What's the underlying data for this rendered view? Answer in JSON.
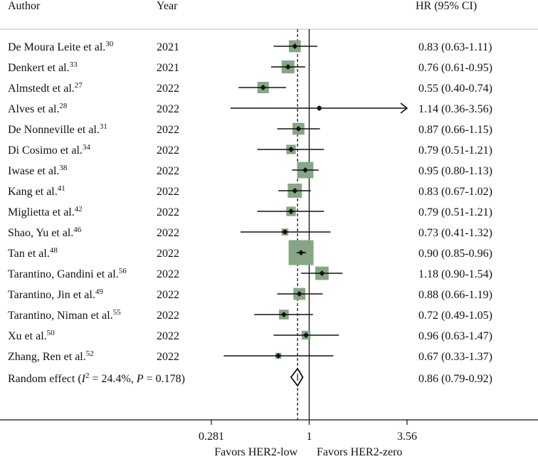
{
  "chart_data": {
    "type": "forest",
    "headers": {
      "author": "Author",
      "year": "Year",
      "hr": "HR (95% CI)"
    },
    "x_scale": "log",
    "x_ticks": [
      {
        "value": 0.281,
        "label": "0.281"
      },
      {
        "value": 1,
        "label": "1"
      },
      {
        "value": 3.56,
        "label": "3.56"
      }
    ],
    "x_range": [
      0.281,
      3.56
    ],
    "favor_left": "Favors HER2-low",
    "favor_right": "Favors HER2-zero",
    "reference_line": 1,
    "pooled_line": 0.86,
    "studies": [
      {
        "author": "De Moura Leite et al.",
        "ref": "30",
        "year": "2021",
        "hr": 0.83,
        "lo": 0.63,
        "hi": 1.11,
        "weight": 2.4,
        "ci_text": "0.83 (0.63-1.11)"
      },
      {
        "author": "Denkert et al.",
        "ref": "33",
        "year": "2021",
        "hr": 0.76,
        "lo": 0.61,
        "hi": 0.95,
        "weight": 2.8,
        "ci_text": "0.76 (0.61-0.95)"
      },
      {
        "author": "Almstedt et al.",
        "ref": "27",
        "year": "2022",
        "hr": 0.55,
        "lo": 0.4,
        "hi": 0.74,
        "weight": 2.2,
        "ci_text": "0.55 (0.40-0.74)"
      },
      {
        "author": "Alves et al.",
        "ref": "28",
        "year": "2022",
        "hr": 1.14,
        "lo": 0.36,
        "hi": 3.56,
        "weight": 0.3,
        "ci_text": "1.14 (0.36-3.56)",
        "arrow_right": true
      },
      {
        "author": "De Nonneville et al.",
        "ref": "31",
        "year": "2022",
        "hr": 0.87,
        "lo": 0.66,
        "hi": 1.15,
        "weight": 2.4,
        "ci_text": "0.87 (0.66-1.15)"
      },
      {
        "author": "Di Cosimo et al.",
        "ref": "34",
        "year": "2022",
        "hr": 0.79,
        "lo": 0.51,
        "hi": 1.21,
        "weight": 1.5,
        "ci_text": "0.79 (0.51-1.21)"
      },
      {
        "author": "Iwase et al.",
        "ref": "38",
        "year": "2022",
        "hr": 0.95,
        "lo": 0.8,
        "hi": 1.13,
        "weight": 4.5,
        "ci_text": "0.95 (0.80-1.13)"
      },
      {
        "author": "Kang et al.",
        "ref": "41",
        "year": "2022",
        "hr": 0.83,
        "lo": 0.67,
        "hi": 1.02,
        "weight": 3.4,
        "ci_text": "0.83 (0.67-1.02)"
      },
      {
        "author": "Miglietta et al.",
        "ref": "42",
        "year": "2022",
        "hr": 0.79,
        "lo": 0.51,
        "hi": 1.21,
        "weight": 1.5,
        "ci_text": "0.79 (0.51-1.21)"
      },
      {
        "author": "Shao, Yu et al.",
        "ref": "46",
        "year": "2022",
        "hr": 0.73,
        "lo": 0.41,
        "hi": 1.32,
        "weight": 0.8,
        "ci_text": "0.73 (0.41-1.32)"
      },
      {
        "author": "Tan et al.",
        "ref": "48",
        "year": "2022",
        "hr": 0.9,
        "lo": 0.85,
        "hi": 0.96,
        "weight": 10.5,
        "ci_text": "0.90 (0.85-0.96)"
      },
      {
        "author": "Tarantino, Gandini et al.",
        "ref": "56",
        "year": "2022",
        "hr": 1.18,
        "lo": 0.9,
        "hi": 1.54,
        "weight": 3.0,
        "ci_text": "1.18 (0.90-1.54)"
      },
      {
        "author": "Tarantino, Jin et al.",
        "ref": "49",
        "year": "2022",
        "hr": 0.88,
        "lo": 0.66,
        "hi": 1.19,
        "weight": 2.4,
        "ci_text": "0.88 (0.66-1.19)"
      },
      {
        "author": "Tarantino, Niman et al.",
        "ref": "55",
        "year": "2022",
        "hr": 0.72,
        "lo": 0.49,
        "hi": 1.05,
        "weight": 1.6,
        "ci_text": "0.72 (0.49-1.05)"
      },
      {
        "author": "Xu et al.",
        "ref": "50",
        "year": "2022",
        "hr": 0.96,
        "lo": 0.63,
        "hi": 1.47,
        "weight": 1.3,
        "ci_text": "0.96 (0.63-1.47)"
      },
      {
        "author": "Zhang, Ren et al.",
        "ref": "52",
        "year": "2022",
        "hr": 0.67,
        "lo": 0.33,
        "hi": 1.37,
        "weight": 0.6,
        "ci_text": "0.67 (0.33-1.37)"
      }
    ],
    "pooled": {
      "label_prefix": "Random effect (",
      "i2_symbol": "I",
      "i2_exp": "2",
      "i2_rest": " = 24.4%, ",
      "p_symbol": "P",
      "p_rest": " = 0.178)",
      "hr": 0.86,
      "lo": 0.79,
      "hi": 0.92,
      "ci_text": "0.86 (0.79-0.92)"
    },
    "colors": {
      "box": "#86a685",
      "line": "#111111",
      "separator": "#bfbfbf"
    }
  }
}
